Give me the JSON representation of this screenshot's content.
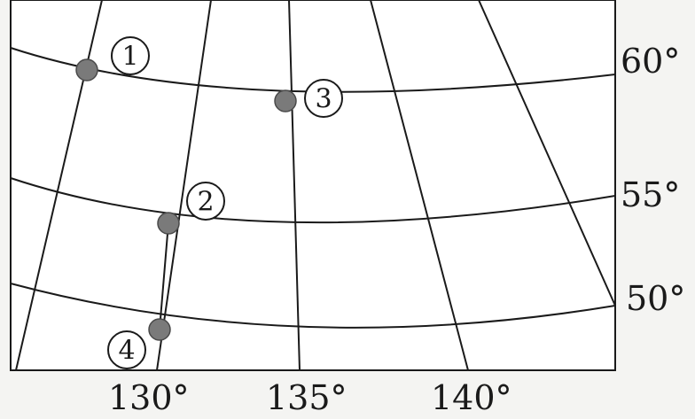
{
  "map": {
    "meridian_labels": [
      "130°",
      "135°",
      "140°"
    ],
    "parallel_labels": [
      "60°",
      "55°",
      "50°"
    ],
    "points": [
      {
        "id": "1",
        "label": "①"
      },
      {
        "id": "2",
        "label": "②"
      },
      {
        "id": "3",
        "label": "③"
      },
      {
        "id": "4",
        "label": "④"
      }
    ],
    "route": [
      "2",
      "4"
    ],
    "colors": {
      "line": "#1a1a1a",
      "point": "#7a7a7a",
      "background": "#ffffff"
    }
  }
}
